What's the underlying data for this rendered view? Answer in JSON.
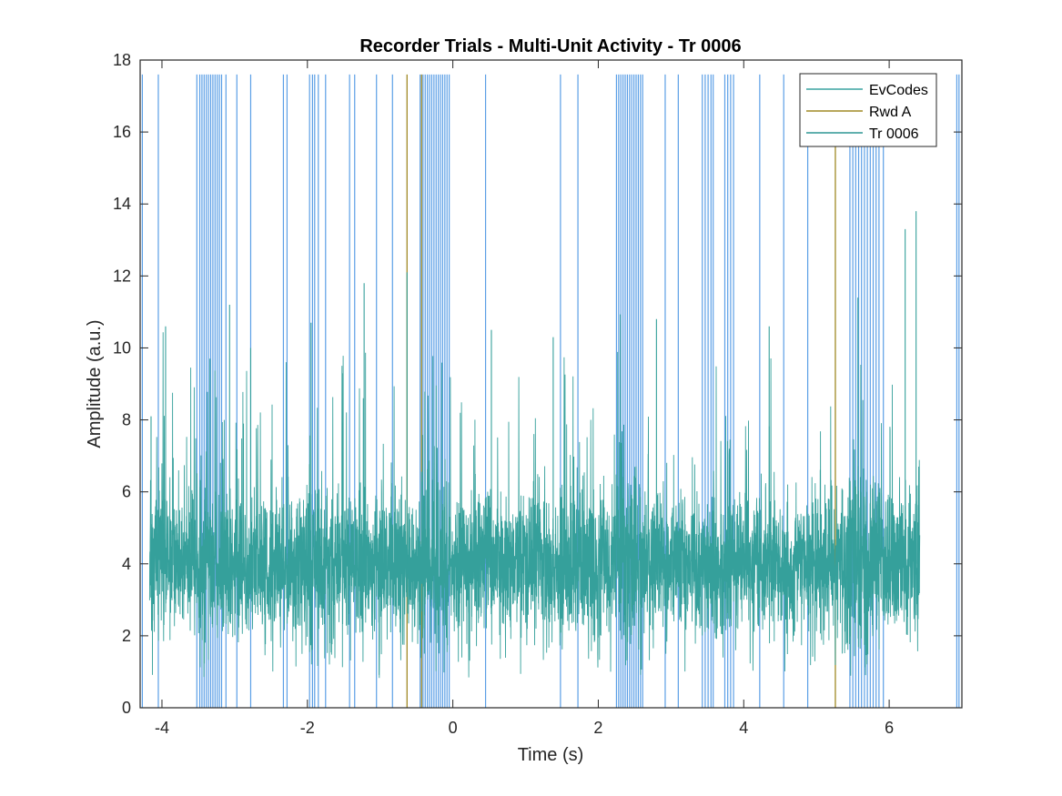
{
  "chart_data": {
    "type": "line",
    "title": "Recorder Trials - Multi-Unit Activity - Tr 0006",
    "xlabel": "Time (s)",
    "ylabel": "Amplitude (a.u.)",
    "xlim": [
      -4.3,
      7.0
    ],
    "ylim": [
      0,
      18
    ],
    "x_ticks": [
      -4,
      -2,
      0,
      2,
      4,
      6
    ],
    "x_tick_labels": [
      "-4",
      "-2",
      "0",
      "2",
      "4",
      "6"
    ],
    "y_ticks": [
      0,
      2,
      4,
      6,
      8,
      10,
      12,
      14,
      16,
      18
    ],
    "y_tick_labels": [
      "0",
      "2",
      "4",
      "6",
      "8",
      "10",
      "12",
      "14",
      "16",
      "18"
    ],
    "grid": false,
    "legend_position": "top-right",
    "legend": [
      {
        "label": "EvCodes",
        "color": "#3aa3a0"
      },
      {
        "label": "Rwd A",
        "color": "#a08a25"
      },
      {
        "label": "Tr 0006",
        "color": "#2d9593"
      }
    ],
    "series": [
      {
        "name": "EvCodes",
        "kind": "vertical-lines",
        "color": "#5b9fe6",
        "y_range": [
          0,
          17.6
        ],
        "x": [
          -4.27,
          -4.05,
          -3.52,
          -3.48,
          -3.45,
          -3.42,
          -3.39,
          -3.36,
          -3.33,
          -3.3,
          -3.27,
          -3.24,
          -3.21,
          -3.18,
          -3.12,
          -2.97,
          -2.78,
          -2.33,
          -2.28,
          -1.97,
          -1.93,
          -1.9,
          -1.85,
          -1.75,
          -1.42,
          -1.35,
          -1.05,
          -0.83,
          -0.45,
          -0.41,
          -0.38,
          -0.35,
          -0.32,
          -0.29,
          -0.26,
          -0.23,
          -0.2,
          -0.17,
          -0.14,
          -0.11,
          -0.08,
          -0.05,
          0.45,
          1.48,
          1.72,
          2.25,
          2.28,
          2.31,
          2.34,
          2.37,
          2.4,
          2.43,
          2.46,
          2.49,
          2.52,
          2.55,
          2.58,
          2.61,
          2.92,
          3.1,
          3.43,
          3.47,
          3.51,
          3.55,
          3.58,
          3.74,
          3.78,
          3.82,
          3.86,
          4.22,
          4.55,
          4.88,
          5.46,
          5.5,
          5.54,
          5.58,
          5.62,
          5.66,
          5.7,
          5.74,
          5.78,
          5.82,
          5.86,
          5.92,
          6.93,
          6.96
        ]
      },
      {
        "name": "Rwd A",
        "kind": "vertical-lines",
        "color": "#a08a25",
        "y_range": [
          0,
          17.6
        ],
        "x": [
          -0.63,
          -0.43,
          5.26
        ]
      },
      {
        "name": "Tr 0006",
        "kind": "dense-noise-trace",
        "color": "#35a09b",
        "x_range": [
          -4.17,
          6.42
        ],
        "baseline": 4.0,
        "typical_band": [
          2.5,
          6.0
        ],
        "peaks": [
          {
            "x": -4.15,
            "y": 8.1
          },
          {
            "x": -3.95,
            "y": 10.6
          },
          {
            "x": -3.34,
            "y": 9.7
          },
          {
            "x": -3.07,
            "y": 11.2
          },
          {
            "x": -2.78,
            "y": 10.0
          },
          {
            "x": -1.95,
            "y": 10.7
          },
          {
            "x": -1.22,
            "y": 11.8
          },
          {
            "x": -0.63,
            "y": 12.1
          },
          {
            "x": 0.53,
            "y": 10.5
          },
          {
            "x": 1.38,
            "y": 10.3
          },
          {
            "x": 2.8,
            "y": 10.8
          },
          {
            "x": 4.35,
            "y": 10.6
          },
          {
            "x": 5.57,
            "y": 11.4
          },
          {
            "x": 6.22,
            "y": 13.3
          },
          {
            "x": 6.37,
            "y": 13.8
          }
        ]
      }
    ]
  }
}
